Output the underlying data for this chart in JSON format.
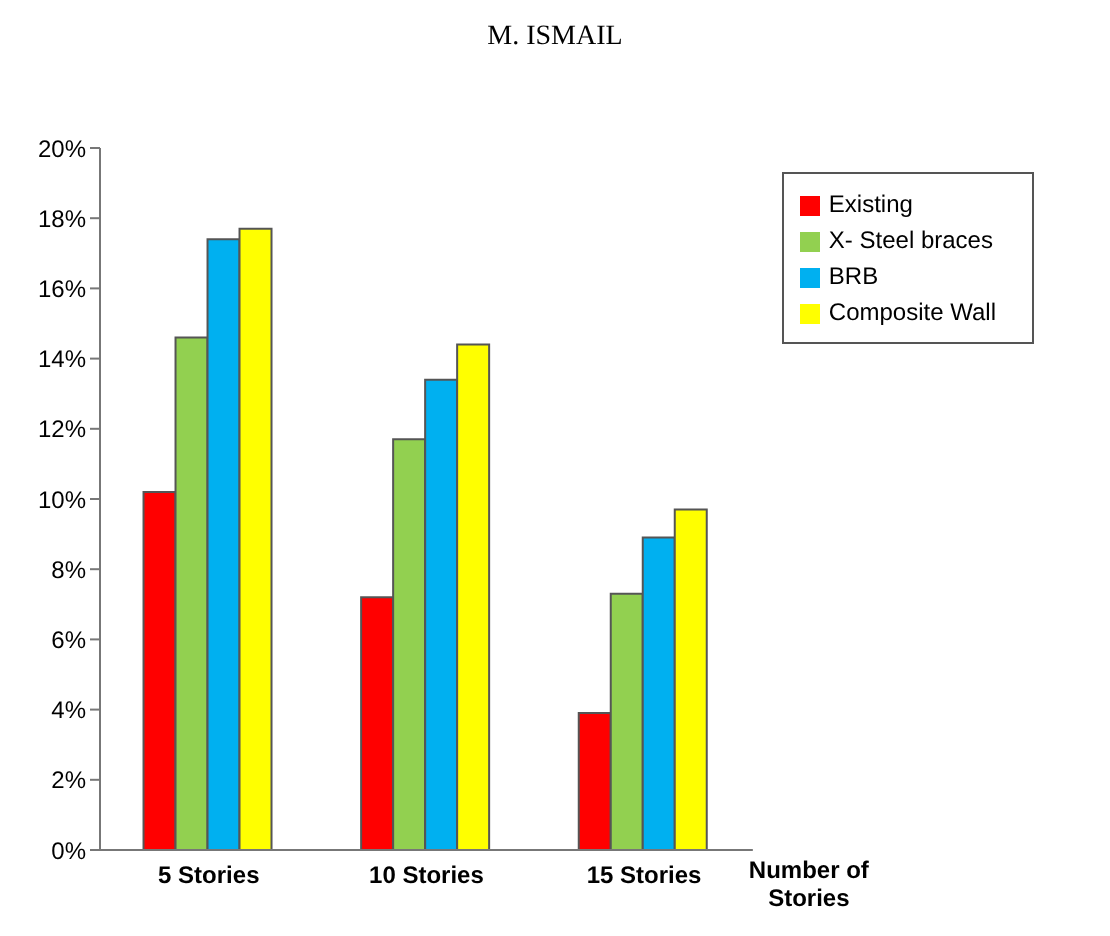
{
  "chart_data": {
    "type": "bar",
    "title": "M. ISMAIL",
    "xlabel": "Number of Stories",
    "categories": [
      "5 Stories",
      "10 Stories",
      "15 Stories"
    ],
    "series": [
      {
        "name": "Existing",
        "color": "#ff0000",
        "values": [
          10.2,
          7.2,
          3.9
        ]
      },
      {
        "name": "X- Steel braces",
        "color": "#92d050",
        "values": [
          14.6,
          11.7,
          7.3
        ]
      },
      {
        "name": "BRB",
        "color": "#00b0f0",
        "values": [
          17.4,
          13.4,
          8.9
        ]
      },
      {
        "name": "Composite Wall",
        "color": "#ffff00",
        "values": [
          17.7,
          14.4,
          9.7
        ]
      }
    ],
    "ylim": [
      0,
      20
    ],
    "yticks": [
      {
        "value": 0,
        "label": "0%"
      },
      {
        "value": 2,
        "label": "2%"
      },
      {
        "value": 4,
        "label": "4%"
      },
      {
        "value": 6,
        "label": "6%"
      },
      {
        "value": 8,
        "label": "8%"
      },
      {
        "value": 10,
        "label": "10%"
      },
      {
        "value": 12,
        "label": "12%"
      },
      {
        "value": 14,
        "label": "14%"
      },
      {
        "value": 16,
        "label": "16%"
      },
      {
        "value": 18,
        "label": "18%"
      },
      {
        "value": 20,
        "label": "20%"
      }
    ],
    "grid": false,
    "legend": "top right"
  }
}
